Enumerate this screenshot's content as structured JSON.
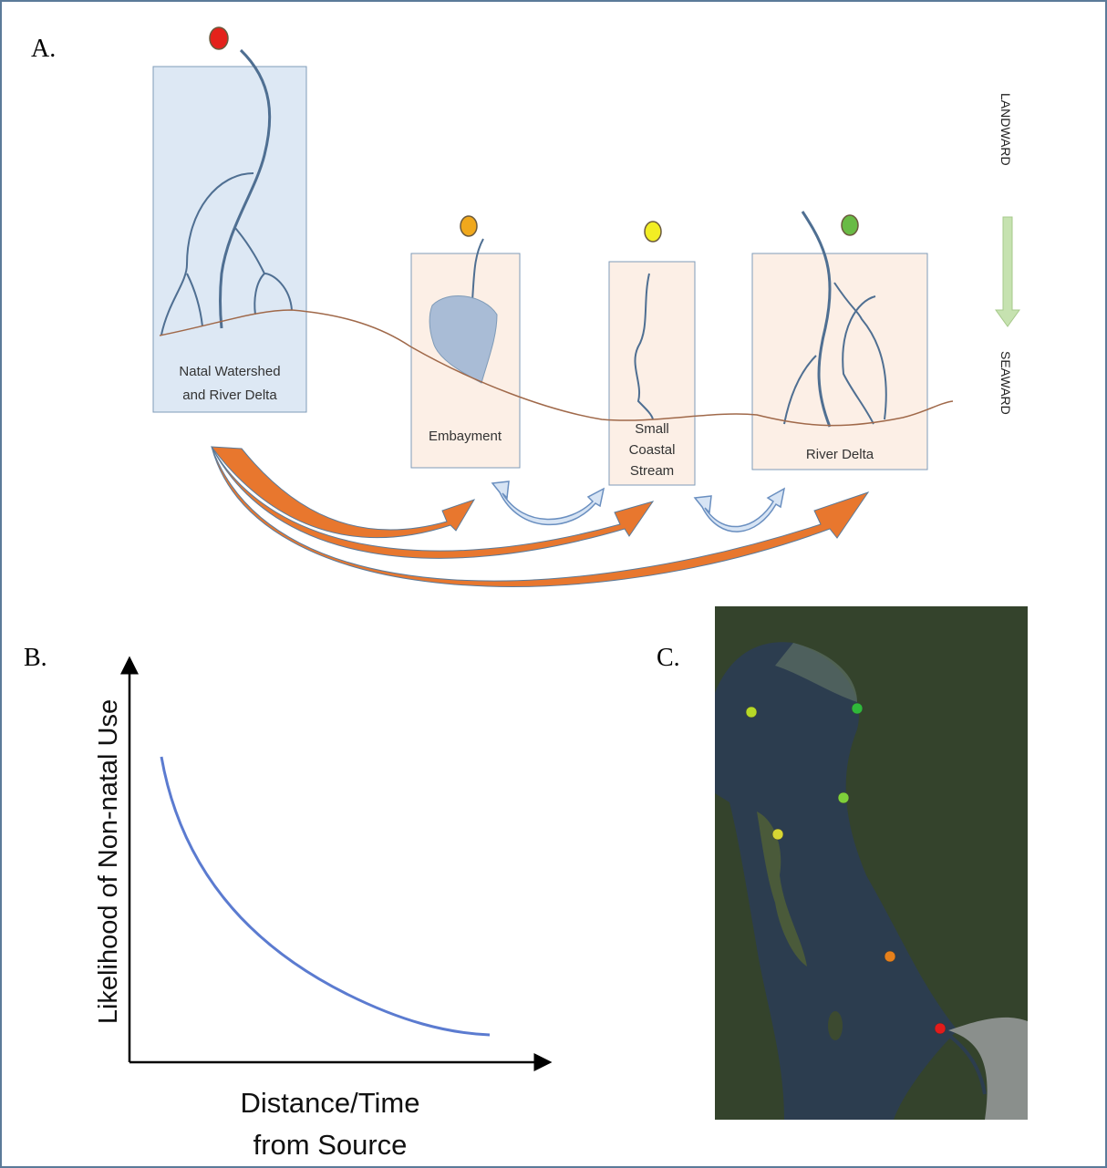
{
  "panel_a": {
    "label": "A.",
    "boxes": [
      {
        "label_lines": [
          "Natal Watershed",
          "and River Delta"
        ]
      },
      {
        "label_lines": [
          "Embayment"
        ]
      },
      {
        "label_lines": [
          "Small",
          "Coastal",
          "Stream"
        ]
      },
      {
        "label_lines": [
          "River Delta"
        ]
      }
    ],
    "landward": "LANDWARD",
    "seaward": "SEAWARD"
  },
  "panel_b": {
    "label": "B.",
    "y_axis_label": "Likelihood of Non-natal Use",
    "x_axis_label_lines": [
      "Distance/Time",
      "from Source"
    ]
  },
  "panel_c": {
    "label": "C."
  }
}
